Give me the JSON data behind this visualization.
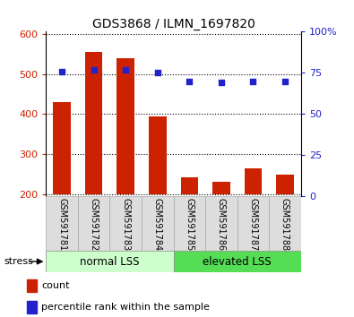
{
  "title": "GDS3868 / ILMN_1697820",
  "categories": [
    "GSM591781",
    "GSM591782",
    "GSM591783",
    "GSM591784",
    "GSM591785",
    "GSM591786",
    "GSM591787",
    "GSM591788"
  ],
  "bar_values": [
    430,
    555,
    540,
    395,
    242,
    232,
    265,
    250
  ],
  "percentile_values": [
    76,
    77,
    77,
    75,
    70,
    69,
    70,
    70
  ],
  "bar_color": "#cc2200",
  "dot_color": "#2222cc",
  "ylim_left": [
    195,
    605
  ],
  "ylim_right": [
    0,
    100
  ],
  "yticks_left": [
    200,
    300,
    400,
    500,
    600
  ],
  "ytick_labels_left": [
    "200",
    "300",
    "400",
    "500",
    "600"
  ],
  "yticks_right": [
    0,
    25,
    50,
    75,
    100
  ],
  "ytick_labels_right": [
    "0",
    "25",
    "50",
    "75",
    "100%"
  ],
  "group1_label": "normal LSS",
  "group2_label": "elevated LSS",
  "group1_color": "#ccffcc",
  "group2_color": "#55dd55",
  "group1_indices": [
    0,
    1,
    2,
    3
  ],
  "group2_indices": [
    4,
    5,
    6,
    7
  ],
  "stress_label": "stress",
  "legend_bar_label": "count",
  "legend_dot_label": "percentile rank within the sample",
  "ylabel_color_left": "#cc2200",
  "ylabel_color_right": "#2222cc",
  "bar_bottom": 200,
  "label_bg_color": "#dddddd"
}
